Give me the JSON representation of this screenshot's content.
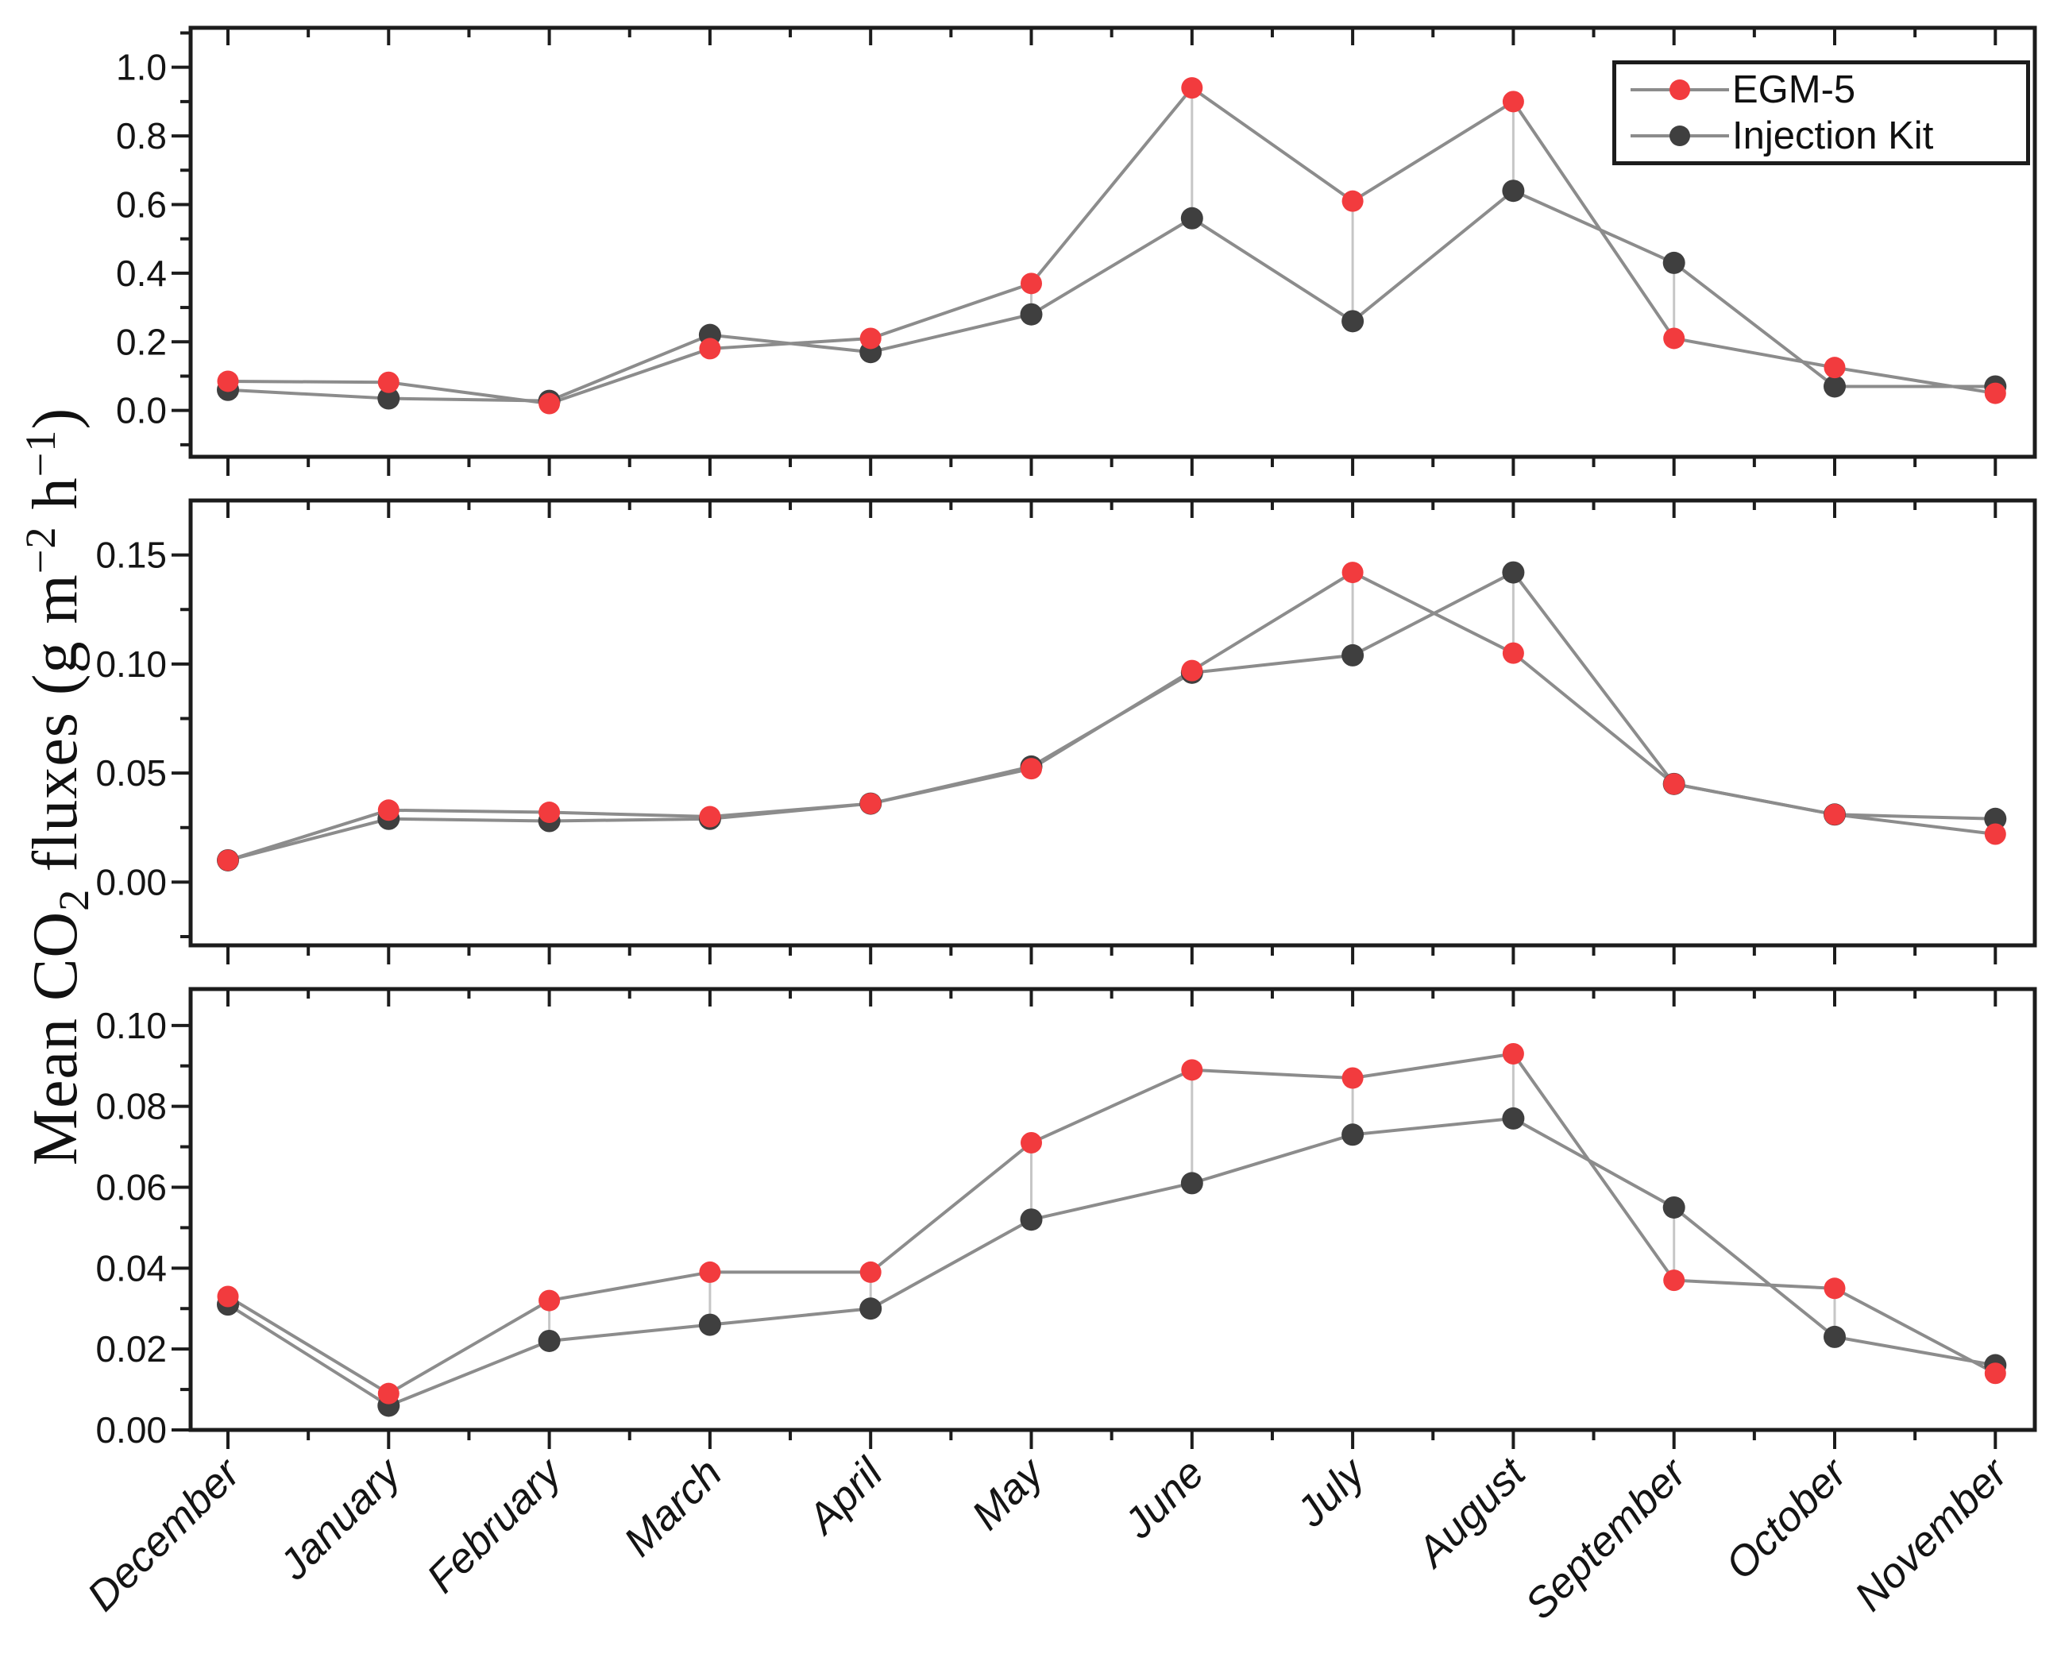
{
  "figure": {
    "ylabel_parts": {
      "p1": "Mean CO",
      "sub": "2",
      "p2": " fluxes (g m",
      "sup1": "−2",
      "p3": " h",
      "sup2": "−1",
      "p4": ")"
    },
    "colors": {
      "egm5": "#f23b3e",
      "injection_kit": "#3f3f3f",
      "series_line": "#8c8c8c",
      "connector_line": "#c6c6c6",
      "axis": "#1c1c1c",
      "text": "#141414"
    }
  },
  "legend": {
    "items": [
      {
        "label": "EGM-5",
        "color": "#f23b3e"
      },
      {
        "label": "Injection Kit",
        "color": "#3f3f3f"
      }
    ]
  },
  "chart_data": {
    "type": "line",
    "title": "",
    "xlabel": "",
    "ylabel": "Mean CO2 fluxes (g m-2 h-1)",
    "grid": false,
    "legend_position": "inside top-right of first panel",
    "categories": [
      "December",
      "January",
      "February",
      "March",
      "April",
      "May",
      "June",
      "July",
      "August",
      "September",
      "October",
      "November"
    ],
    "panels": [
      {
        "ylim": [
          -0.135,
          1.115
        ],
        "ytick_values": [
          0.0,
          0.2,
          0.4,
          0.6,
          0.8,
          1.0
        ],
        "ytick_labels": [
          "0.0",
          "0.2",
          "0.4",
          "0.6",
          "0.8",
          "1.0"
        ],
        "series": [
          {
            "name": "EGM-5",
            "color": "#f23b3e",
            "values": [
              0.085,
              0.082,
              0.02,
              0.18,
              0.21,
              0.37,
              0.94,
              0.61,
              0.9,
              0.21,
              0.125,
              0.05
            ]
          },
          {
            "name": "Injection Kit",
            "color": "#3f3f3f",
            "values": [
              0.06,
              0.035,
              0.028,
              0.22,
              0.17,
              0.28,
              0.56,
              0.26,
              0.64,
              0.43,
              0.07,
              0.07
            ]
          }
        ]
      },
      {
        "ylim": [
          -0.029,
          0.175
        ],
        "ytick_values": [
          0.0,
          0.05,
          0.1,
          0.15
        ],
        "ytick_labels": [
          "0.00",
          "0.05",
          "0.10",
          "0.15"
        ],
        "series": [
          {
            "name": "EGM-5",
            "color": "#f23b3e",
            "values": [
              0.01,
              0.033,
              0.032,
              0.03,
              0.036,
              0.052,
              0.097,
              0.142,
              0.105,
              0.045,
              0.031,
              0.022
            ]
          },
          {
            "name": "Injection Kit",
            "color": "#3f3f3f",
            "values": [
              0.01,
              0.029,
              0.028,
              0.029,
              0.036,
              0.053,
              0.096,
              0.104,
              0.142,
              0.045,
              0.031,
              0.029
            ]
          }
        ]
      },
      {
        "ylim": [
          0,
          0.109
        ],
        "ytick_values": [
          0.0,
          0.02,
          0.04,
          0.06,
          0.08,
          0.1
        ],
        "ytick_labels": [
          "0.00",
          "0.02",
          "0.04",
          "0.06",
          "0.08",
          "0.10"
        ],
        "series": [
          {
            "name": "EGM-5",
            "color": "#f23b3e",
            "values": [
              0.033,
              0.009,
              0.032,
              0.039,
              0.039,
              0.071,
              0.089,
              0.087,
              0.093,
              0.037,
              0.035,
              0.014
            ]
          },
          {
            "name": "Injection Kit",
            "color": "#3f3f3f",
            "values": [
              0.031,
              0.006,
              0.022,
              0.026,
              0.03,
              0.052,
              0.061,
              0.073,
              0.077,
              0.055,
              0.023,
              0.016
            ]
          }
        ]
      }
    ]
  }
}
